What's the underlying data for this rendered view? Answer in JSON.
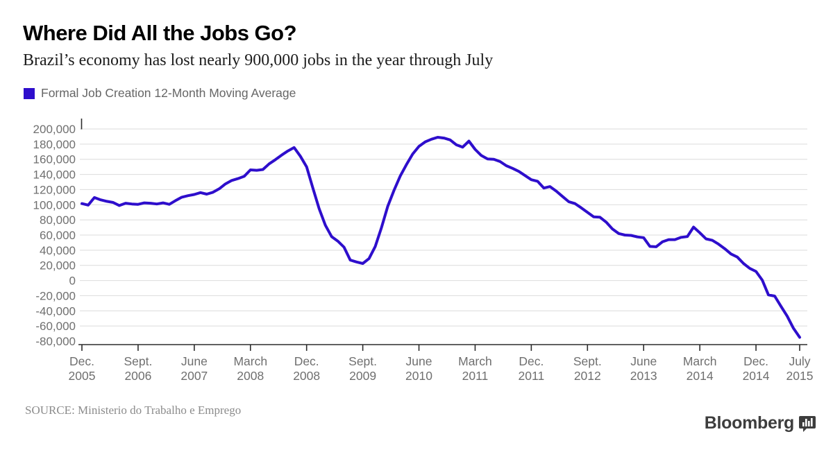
{
  "header": {
    "title": "Where Did All the Jobs Go?",
    "subtitle": "Brazil’s economy has lost nearly 900,000 jobs in the year through July",
    "legend_label": "Formal Job Creation 12-Month Moving Average",
    "legend_color": "#2e0ecc"
  },
  "chart_data": {
    "type": "line",
    "title": "Where Did All the Jobs Go?",
    "series_name": "Formal Job Creation 12-Month Moving Average",
    "line_color": "#2e0ecc",
    "grid": true,
    "ylim": [
      -80000,
      200000
    ],
    "ytick_step": 20000,
    "x": [
      "2005-12",
      "2006-01",
      "2006-02",
      "2006-03",
      "2006-04",
      "2006-05",
      "2006-06",
      "2006-07",
      "2006-08",
      "2006-09",
      "2006-10",
      "2006-11",
      "2006-12",
      "2007-01",
      "2007-02",
      "2007-03",
      "2007-04",
      "2007-05",
      "2007-06",
      "2007-07",
      "2007-08",
      "2007-09",
      "2007-10",
      "2007-11",
      "2007-12",
      "2008-01",
      "2008-02",
      "2008-03",
      "2008-04",
      "2008-05",
      "2008-06",
      "2008-07",
      "2008-08",
      "2008-09",
      "2008-10",
      "2008-11",
      "2008-12",
      "2009-01",
      "2009-02",
      "2009-03",
      "2009-04",
      "2009-05",
      "2009-06",
      "2009-07",
      "2009-08",
      "2009-09",
      "2009-10",
      "2009-11",
      "2009-12",
      "2010-01",
      "2010-02",
      "2010-03",
      "2010-04",
      "2010-05",
      "2010-06",
      "2010-07",
      "2010-08",
      "2010-09",
      "2010-10",
      "2010-11",
      "2010-12",
      "2011-01",
      "2011-02",
      "2011-03",
      "2011-04",
      "2011-05",
      "2011-06",
      "2011-07",
      "2011-08",
      "2011-09",
      "2011-10",
      "2011-11",
      "2011-12",
      "2012-01",
      "2012-02",
      "2012-03",
      "2012-04",
      "2012-05",
      "2012-06",
      "2012-07",
      "2012-08",
      "2012-09",
      "2012-10",
      "2012-11",
      "2012-12",
      "2013-01",
      "2013-02",
      "2013-03",
      "2013-04",
      "2013-05",
      "2013-06",
      "2013-07",
      "2013-08",
      "2013-09",
      "2013-10",
      "2013-11",
      "2013-12",
      "2014-01",
      "2014-02",
      "2014-03",
      "2014-04",
      "2014-05",
      "2014-06",
      "2014-07",
      "2014-08",
      "2014-09",
      "2014-10",
      "2014-11",
      "2014-12",
      "2015-01",
      "2015-02",
      "2015-03",
      "2015-04",
      "2015-05",
      "2015-06",
      "2015-07"
    ],
    "values": [
      101500,
      99500,
      109500,
      106500,
      104500,
      103000,
      99000,
      102000,
      101000,
      100500,
      102500,
      102000,
      101000,
      102500,
      100500,
      105500,
      110000,
      112000,
      113500,
      116000,
      114000,
      116500,
      121000,
      127500,
      132000,
      134500,
      137500,
      146000,
      145500,
      146500,
      154000,
      159500,
      165500,
      171000,
      175500,
      164000,
      150000,
      122000,
      95000,
      73000,
      58000,
      52000,
      44000,
      27000,
      24500,
      22500,
      29000,
      45000,
      70000,
      98000,
      119000,
      138000,
      153000,
      167000,
      177000,
      183000,
      186500,
      189000,
      188000,
      185500,
      179000,
      176000,
      184000,
      173000,
      165000,
      160500,
      160000,
      157000,
      151500,
      148000,
      144000,
      138500,
      133000,
      131000,
      122000,
      124000,
      118000,
      111000,
      104000,
      101500,
      96000,
      90000,
      84000,
      83500,
      77000,
      68000,
      62000,
      60000,
      59500,
      57500,
      56500,
      45000,
      44500,
      51000,
      54000,
      54000,
      57000,
      58000,
      70500,
      63000,
      55000,
      53000,
      48000,
      42000,
      35000,
      31000,
      22500,
      16000,
      12000,
      500,
      -19000,
      -20500,
      -34000,
      -47000,
      -63000,
      -75000
    ],
    "xticks": [
      {
        "index": 0,
        "line1": "Dec.",
        "line2": "2005"
      },
      {
        "index": 9,
        "line1": "Sept.",
        "line2": "2006"
      },
      {
        "index": 18,
        "line1": "June",
        "line2": "2007"
      },
      {
        "index": 27,
        "line1": "March",
        "line2": "2008"
      },
      {
        "index": 36,
        "line1": "Dec.",
        "line2": "2008"
      },
      {
        "index": 45,
        "line1": "Sept.",
        "line2": "2009"
      },
      {
        "index": 54,
        "line1": "June",
        "line2": "2010"
      },
      {
        "index": 63,
        "line1": "March",
        "line2": "2011"
      },
      {
        "index": 72,
        "line1": "Dec.",
        "line2": "2011"
      },
      {
        "index": 81,
        "line1": "Sept.",
        "line2": "2012"
      },
      {
        "index": 90,
        "line1": "June",
        "line2": "2013"
      },
      {
        "index": 99,
        "line1": "March",
        "line2": "2014"
      },
      {
        "index": 108,
        "line1": "Dec.",
        "line2": "2014"
      },
      {
        "index": 115,
        "line1": "July",
        "line2": "2015"
      }
    ],
    "legend_position": "top-left",
    "colors": {
      "gridline": "#dbdbdb",
      "axis": "#2b2b2b",
      "tick_label": "#6f6f6f"
    }
  },
  "footer": {
    "source": "SOURCE: Ministerio do Trabalho e Emprego",
    "logo_text": "Bloomberg"
  }
}
